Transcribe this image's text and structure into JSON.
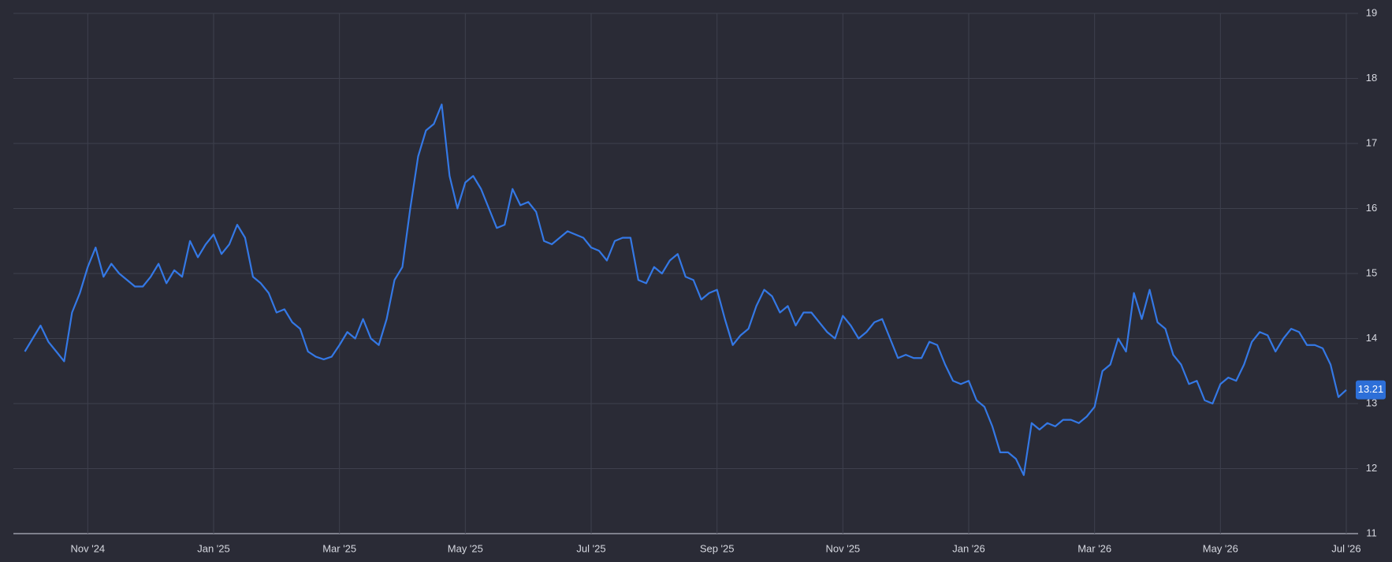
{
  "chart_data": {
    "type": "line",
    "categories": [
      null,
      null,
      null,
      null,
      null,
      null,
      null,
      null,
      "Nov '24",
      null,
      null,
      null,
      null,
      null,
      null,
      null,
      null,
      null,
      null,
      null,
      null,
      null,
      null,
      null,
      "Jan '25",
      null,
      null,
      null,
      null,
      null,
      null,
      null,
      null,
      null,
      null,
      null,
      null,
      null,
      null,
      null,
      "Mar '25",
      null,
      null,
      null,
      null,
      null,
      null,
      null,
      null,
      null,
      null,
      null,
      null,
      null,
      null,
      null,
      "May '25",
      null,
      null,
      null,
      null,
      null,
      null,
      null,
      null,
      null,
      null,
      null,
      null,
      null,
      null,
      null,
      "Jul '25",
      null,
      null,
      null,
      null,
      null,
      null,
      null,
      null,
      null,
      null,
      null,
      null,
      null,
      null,
      null,
      "Sep '25",
      null,
      null,
      null,
      null,
      null,
      null,
      null,
      null,
      null,
      null,
      null,
      null,
      null,
      null,
      null,
      "Nov '25",
      null,
      null,
      null,
      null,
      null,
      null,
      null,
      null,
      null,
      null,
      null,
      null,
      null,
      null,
      null,
      "Jan '26",
      null,
      null,
      null,
      null,
      null,
      null,
      null,
      null,
      null,
      null,
      null,
      null,
      null,
      null,
      null,
      "Mar '26",
      null,
      null,
      null,
      null,
      null,
      null,
      null,
      null,
      null,
      null,
      null,
      null,
      null,
      null,
      null,
      "May '26",
      null,
      null,
      null,
      null,
      null,
      null,
      null,
      null,
      null,
      null,
      null,
      null,
      null,
      null,
      null,
      "Jul '26"
    ],
    "values": [
      13.8,
      14.0,
      14.2,
      13.95,
      13.8,
      13.65,
      14.4,
      14.7,
      15.1,
      15.4,
      14.95,
      15.15,
      15.0,
      14.9,
      14.8,
      14.8,
      14.95,
      15.15,
      14.85,
      15.05,
      14.95,
      15.5,
      15.25,
      15.45,
      15.6,
      15.3,
      15.45,
      15.75,
      15.55,
      14.95,
      14.85,
      14.7,
      14.4,
      14.45,
      14.25,
      14.15,
      13.8,
      13.72,
      13.68,
      13.72,
      13.9,
      14.1,
      14.0,
      14.3,
      14.0,
      13.9,
      14.3,
      14.9,
      15.1,
      16.0,
      16.8,
      17.2,
      17.3,
      17.6,
      16.5,
      16.0,
      16.4,
      16.5,
      16.3,
      16.0,
      15.7,
      15.75,
      16.3,
      16.05,
      16.1,
      15.95,
      15.5,
      15.45,
      15.55,
      15.65,
      15.6,
      15.55,
      15.4,
      15.35,
      15.2,
      15.5,
      15.55,
      15.55,
      14.9,
      14.85,
      15.1,
      15.0,
      15.2,
      15.3,
      14.95,
      14.9,
      14.6,
      14.7,
      14.75,
      14.3,
      13.9,
      14.05,
      14.15,
      14.5,
      14.75,
      14.65,
      14.4,
      14.5,
      14.2,
      14.4,
      14.4,
      14.25,
      14.1,
      14.0,
      14.35,
      14.2,
      14.0,
      14.1,
      14.25,
      14.3,
      14.0,
      13.7,
      13.75,
      13.7,
      13.7,
      13.95,
      13.9,
      13.6,
      13.35,
      13.3,
      13.35,
      13.05,
      12.95,
      12.65,
      12.25,
      12.25,
      12.15,
      11.9,
      12.7,
      12.6,
      12.7,
      12.65,
      12.75,
      12.75,
      12.7,
      12.8,
      12.95,
      13.5,
      13.6,
      14.0,
      13.8,
      14.7,
      14.3,
      14.75,
      14.25,
      14.15,
      13.75,
      13.6,
      13.3,
      13.35,
      13.05,
      13.0,
      13.3,
      13.4,
      13.35,
      13.6,
      13.95,
      14.1,
      14.05,
      13.8,
      14.0,
      14.15,
      14.1,
      13.9,
      13.9,
      13.85,
      13.6,
      13.1,
      13.21
    ],
    "color": "#3478e5",
    "ylim": [
      11,
      19
    ],
    "yticks": [
      11,
      12,
      13,
      14,
      15,
      16,
      17,
      18,
      19
    ],
    "grid": true
  }
}
